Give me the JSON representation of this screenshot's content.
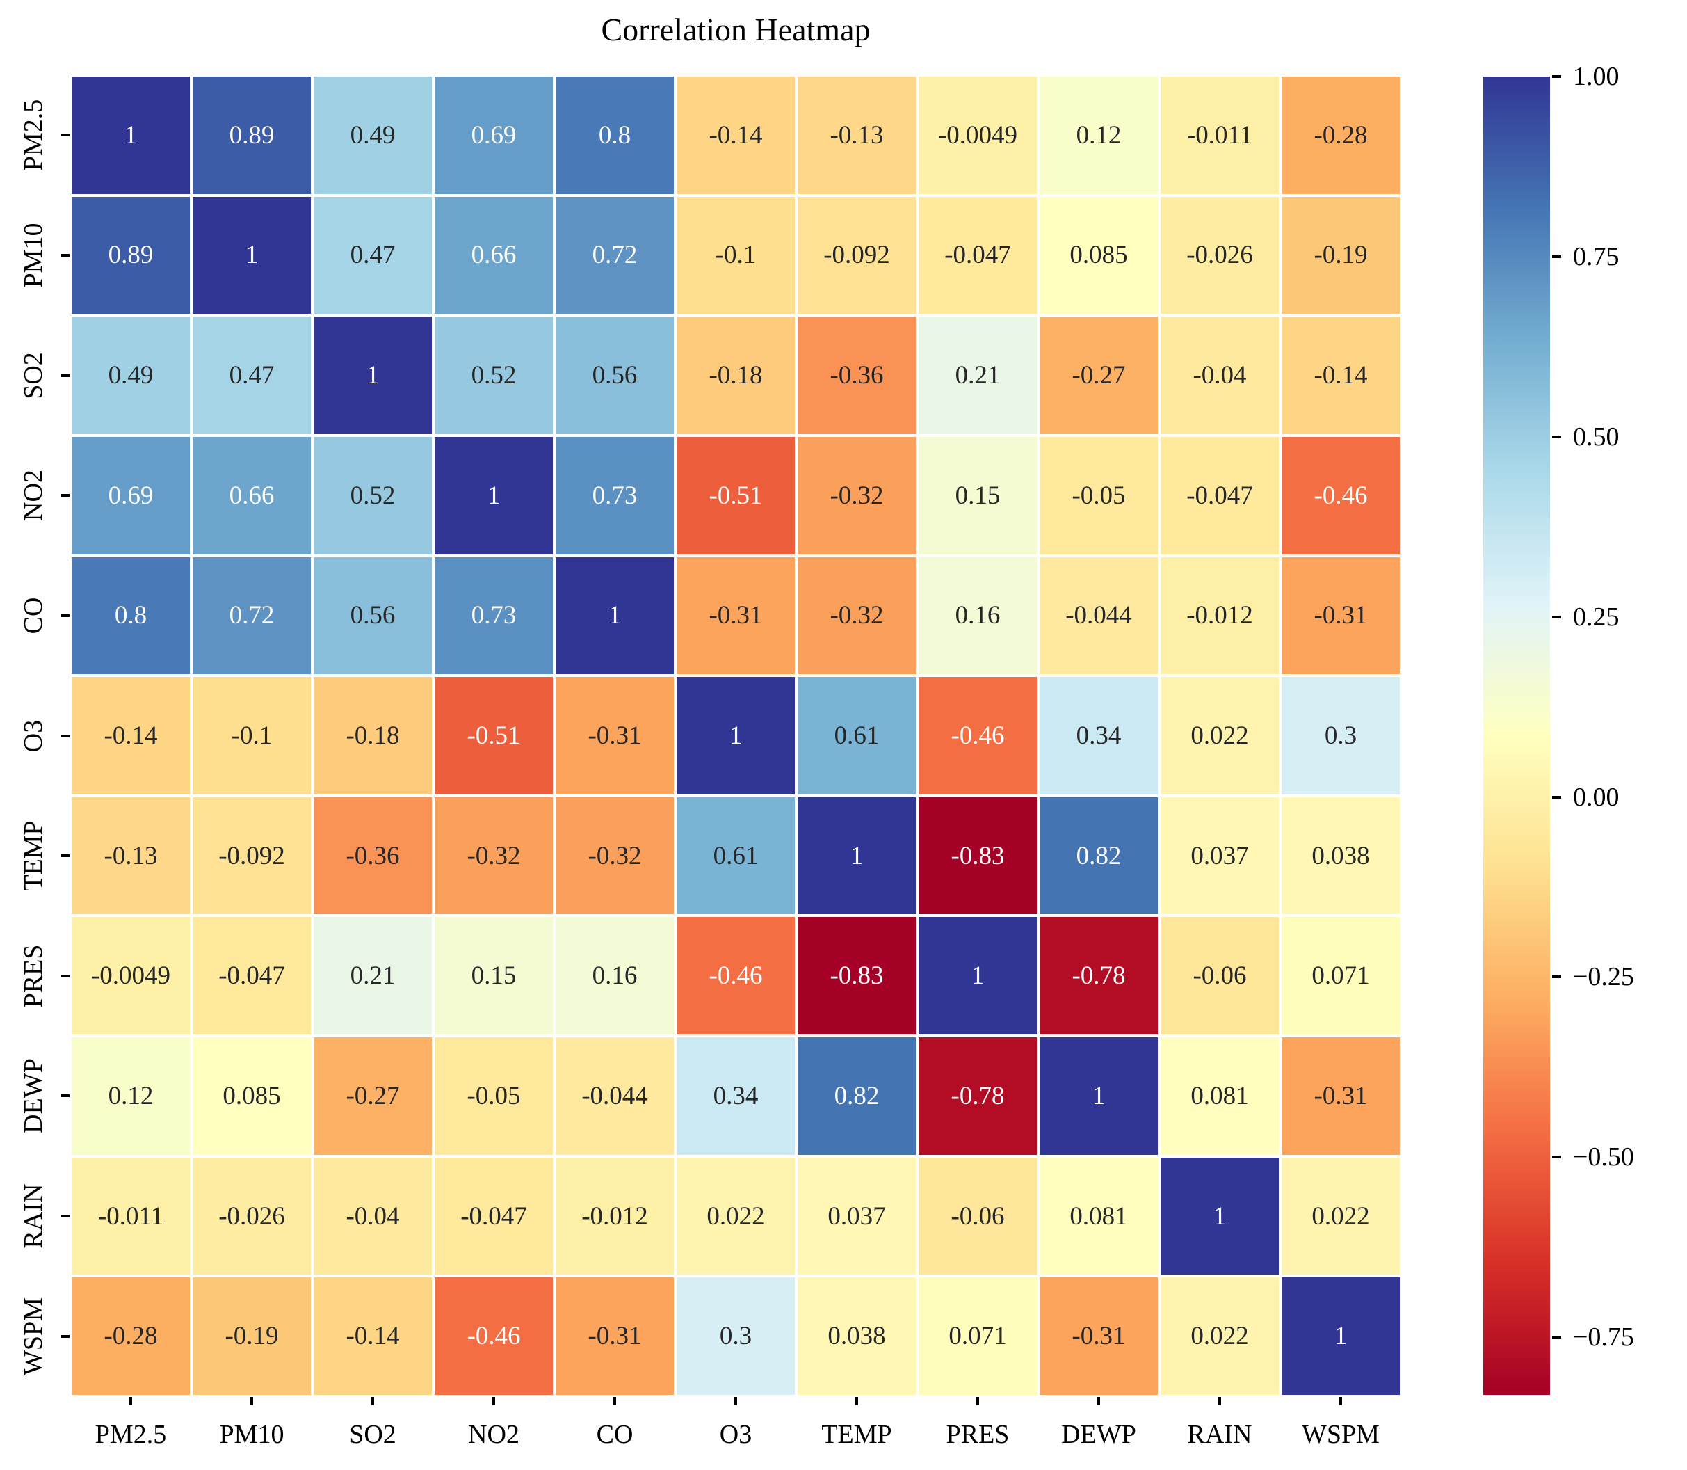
{
  "chart_data": {
    "type": "heatmap",
    "title": "Correlation Heatmap",
    "categories": [
      "PM2.5",
      "PM10",
      "SO2",
      "NO2",
      "CO",
      "O3",
      "TEMP",
      "PRES",
      "DEWP",
      "RAIN",
      "WSPM"
    ],
    "matrix": [
      [
        "1",
        "0.89",
        "0.49",
        "0.69",
        "0.8",
        "-0.14",
        "-0.13",
        "-0.0049",
        "0.12",
        "-0.011",
        "-0.28"
      ],
      [
        "0.89",
        "1",
        "0.47",
        "0.66",
        "0.72",
        "-0.1",
        "-0.092",
        "-0.047",
        "0.085",
        "-0.026",
        "-0.19"
      ],
      [
        "0.49",
        "0.47",
        "1",
        "0.52",
        "0.56",
        "-0.18",
        "-0.36",
        "0.21",
        "-0.27",
        "-0.04",
        "-0.14"
      ],
      [
        "0.69",
        "0.66",
        "0.52",
        "1",
        "0.73",
        "-0.51",
        "-0.32",
        "0.15",
        "-0.05",
        "-0.047",
        "-0.46"
      ],
      [
        "0.8",
        "0.72",
        "0.56",
        "0.73",
        "1",
        "-0.31",
        "-0.32",
        "0.16",
        "-0.044",
        "-0.012",
        "-0.31"
      ],
      [
        "-0.14",
        "-0.1",
        "-0.18",
        "-0.51",
        "-0.31",
        "1",
        "0.61",
        "-0.46",
        "0.34",
        "0.022",
        "0.3"
      ],
      [
        "-0.13",
        "-0.092",
        "-0.36",
        "-0.32",
        "-0.32",
        "0.61",
        "1",
        "-0.83",
        "0.82",
        "0.037",
        "0.038"
      ],
      [
        "-0.0049",
        "-0.047",
        "0.21",
        "0.15",
        "0.16",
        "-0.46",
        "-0.83",
        "1",
        "-0.78",
        "-0.06",
        "0.071"
      ],
      [
        "0.12",
        "0.085",
        "-0.27",
        "-0.05",
        "-0.044",
        "0.34",
        "0.82",
        "-0.78",
        "1",
        "0.081",
        "-0.31"
      ],
      [
        "-0.011",
        "-0.026",
        "-0.04",
        "-0.047",
        "-0.012",
        "0.022",
        "0.037",
        "-0.06",
        "0.081",
        "1",
        "0.022"
      ],
      [
        "-0.28",
        "-0.19",
        "-0.14",
        "-0.46",
        "-0.31",
        "0.3",
        "0.038",
        "0.071",
        "-0.31",
        "0.022",
        "1"
      ]
    ],
    "vmin": -0.83,
    "vmax": 1.0,
    "annotated": true,
    "grid": false,
    "colormap": {
      "name": "RdYlBu",
      "stops": [
        "#a50026",
        "#d73027",
        "#f46d43",
        "#fdae61",
        "#fee090",
        "#ffffbf",
        "#e0f3f8",
        "#abd9e9",
        "#74add1",
        "#4575b4",
        "#313695"
      ]
    },
    "annotation_colors": {
      "light_text": "#ffffff",
      "dark_text": "#262626"
    },
    "colorbar": {
      "position": "right",
      "ticks": [
        {
          "label": "1.00",
          "value": 1.0
        },
        {
          "label": "0.75",
          "value": 0.75
        },
        {
          "label": "0.50",
          "value": 0.5
        },
        {
          "label": "0.25",
          "value": 0.25
        },
        {
          "label": "0.00",
          "value": 0.0
        },
        {
          "label": "−0.25",
          "value": -0.25
        },
        {
          "label": "−0.50",
          "value": -0.5
        },
        {
          "label": "−0.75",
          "value": -0.75
        }
      ]
    }
  }
}
